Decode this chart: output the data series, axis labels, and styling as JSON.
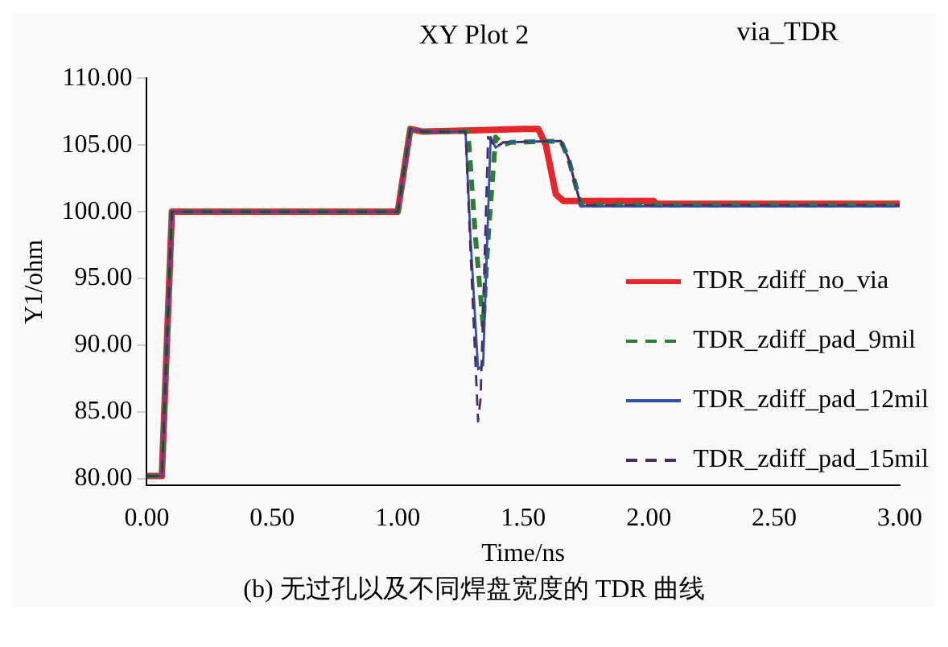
{
  "chart_data": {
    "type": "line",
    "title": "XY Plot 2",
    "subtitle": "via_TDR",
    "xlabel": "Time/ns",
    "ylabel": "Y1/ohm",
    "annotations": [
      "(b) 无过孔以及不同焊盘宽度的 TDR 曲线"
    ],
    "xlim": [
      0,
      3
    ],
    "xticks": [
      {
        "value": 0,
        "label": "0.00"
      },
      {
        "value": 0.5,
        "label": "0.50"
      },
      {
        "value": 1,
        "label": "1.00"
      },
      {
        "value": 1.5,
        "label": "1.50"
      },
      {
        "value": 2,
        "label": "2.00"
      },
      {
        "value": 2.5,
        "label": "2.50"
      },
      {
        "value": 3,
        "label": "3.00"
      }
    ],
    "ylim": [
      79.5,
      110
    ],
    "yticks": [
      {
        "value": 80,
        "label": "80.00"
      },
      {
        "value": 85,
        "label": "85.00"
      },
      {
        "value": 90,
        "label": "90.00"
      },
      {
        "value": 95,
        "label": "95.00"
      },
      {
        "value": 100,
        "label": "100.00"
      },
      {
        "value": 105,
        "label": "105.00"
      },
      {
        "value": 110,
        "label": "110.00"
      }
    ],
    "grid": false,
    "legend": "right",
    "marker": "none",
    "series": [
      {
        "name": "TDR_zdiff_no_via",
        "color": "#e8262a",
        "line_style": "solid",
        "x": [
          0,
          0.06,
          0.1,
          1.0,
          1.05,
          1.1,
          1.3,
          1.5,
          1.56,
          1.59,
          1.63,
          1.66,
          2.02,
          2.03,
          3.0
        ],
        "values": [
          80.2,
          80.2,
          100,
          100,
          106.2,
          106,
          106.1,
          106.2,
          106.2,
          105,
          101.3,
          100.8,
          100.8,
          100.6,
          100.6
        ]
      },
      {
        "name": "TDR_zdiff_pad_9mil",
        "color": "#2e7d32",
        "line_style": "dashed",
        "x": [
          0,
          0.06,
          0.1,
          1.0,
          1.05,
          1.1,
          1.28,
          1.31,
          1.34,
          1.36,
          1.39,
          1.42,
          1.45,
          1.65,
          1.68,
          1.73,
          3.0
        ],
        "values": [
          80.2,
          80.2,
          100,
          100,
          106.2,
          106,
          106,
          98,
          91.5,
          98,
          105.6,
          105,
          105.2,
          105.3,
          104,
          100.5,
          100.5
        ]
      },
      {
        "name": "TDR_zdiff_pad_12mil",
        "color": "#3050b0",
        "line_style": "solid",
        "x": [
          0,
          0.06,
          0.1,
          1.0,
          1.05,
          1.1,
          1.27,
          1.29,
          1.32,
          1.34,
          1.37,
          1.39,
          1.42,
          1.65,
          1.68,
          1.73,
          3.0
        ],
        "values": [
          80.2,
          80.2,
          100,
          100,
          106.2,
          106,
          106,
          98,
          88.2,
          88.5,
          105.6,
          104.8,
          105.2,
          105.3,
          104,
          100.4,
          100.4
        ]
      },
      {
        "name": "TDR_zdiff_pad_15mil",
        "color": "#4a2d5e",
        "line_style": "dashed",
        "x": [
          0,
          0.06,
          0.1,
          1.0,
          1.05,
          1.1,
          1.27,
          1.29,
          1.32,
          1.33,
          1.36,
          1.39,
          1.42,
          1.65,
          1.68,
          1.73,
          3.0
        ],
        "values": [
          80.2,
          80.2,
          100,
          100,
          106.2,
          106,
          106,
          97,
          84.3,
          86,
          105.6,
          104.8,
          105.2,
          105.3,
          104,
          100.5,
          100.5
        ]
      }
    ]
  }
}
